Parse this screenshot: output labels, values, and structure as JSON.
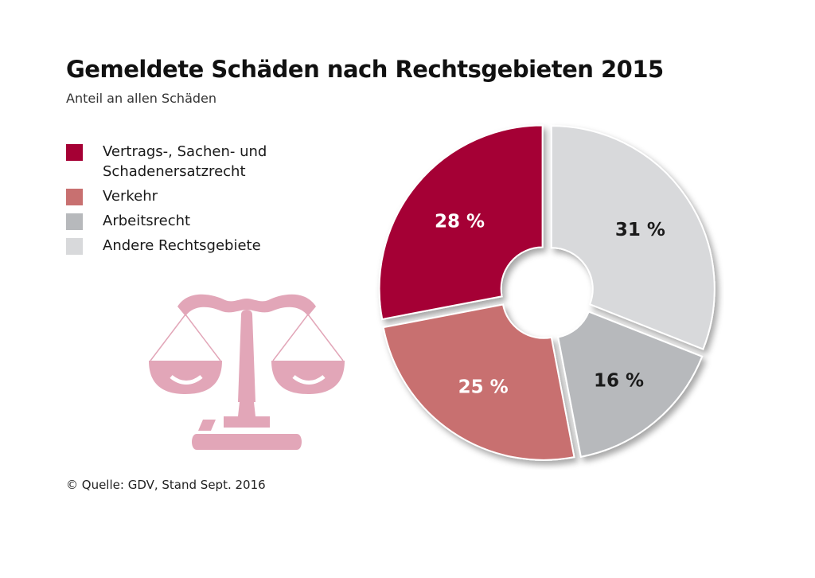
{
  "header": {
    "title": "Gemeldete Schäden nach Rechtsgebieten 2015",
    "subtitle": "Anteil an allen Schäden"
  },
  "footer": {
    "source": "© Quelle: GDV, Stand Sept. 2016"
  },
  "decoration": {
    "icon": "scales-of-justice-icon"
  },
  "chart_data": {
    "type": "pie",
    "variant": "donut",
    "title": "Gemeldete Schäden nach Rechtsgebieten 2015",
    "subtitle": "Anteil an allen Schäden",
    "legend_position": "left",
    "slices": [
      {
        "label": "Vertrags-, Sachen- und Schadenersatzrecht",
        "value": 28,
        "display": "28 %",
        "color": "#a50034",
        "text_color": "#ffffff"
      },
      {
        "label": "Verkehr",
        "value": 25,
        "display": "25 %",
        "color": "#c87070",
        "text_color": "#ffffff"
      },
      {
        "label": "Arbeitsrecht",
        "value": 16,
        "display": "16 %",
        "color": "#b7b9bc",
        "text_color": "#1a1a1a"
      },
      {
        "label": "Andere Rechtsgebiete",
        "value": 31,
        "display": "31 %",
        "color": "#d8d9db",
        "text_color": "#1a1a1a"
      }
    ]
  }
}
